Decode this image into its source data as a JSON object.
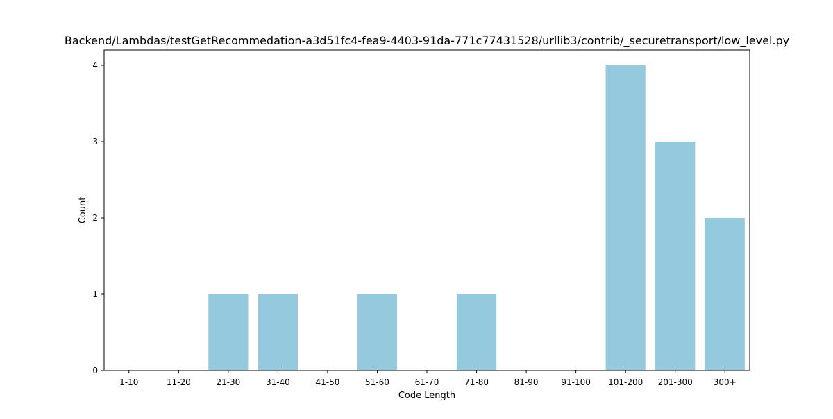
{
  "chart_data": {
    "type": "bar",
    "title": "Backend/Lambdas/testGetRecommedation-a3d51fc4-fea9-4403-91da-771c77431528/urllib3/contrib/_securetransport/low_level.py",
    "xlabel": "Code Length",
    "ylabel": "Count",
    "categories": [
      "1-10",
      "11-20",
      "21-30",
      "31-40",
      "41-50",
      "51-60",
      "61-70",
      "71-80",
      "81-90",
      "91-100",
      "101-200",
      "201-300",
      "300+"
    ],
    "values": [
      0,
      0,
      1,
      1,
      0,
      1,
      0,
      1,
      0,
      0,
      4,
      3,
      2
    ],
    "ylim": [
      0,
      4.2
    ],
    "yticks": [
      0,
      1,
      2,
      3,
      4
    ],
    "bar_color": "#95c9de",
    "grid": false,
    "legend": "none"
  }
}
